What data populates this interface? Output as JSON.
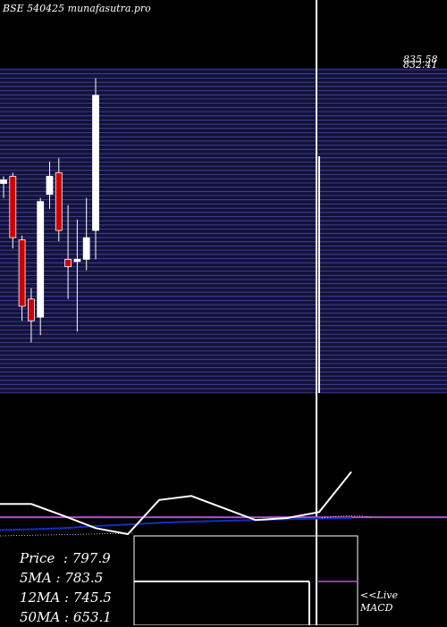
{
  "header": {
    "title": "BSE 540425 munafasutra.pro"
  },
  "stats": {
    "price_label": "Price",
    "price_value": "797.9",
    "ma5_label": "5MA",
    "ma5_value": "783.5",
    "ma12_label": "12MA",
    "ma12_value": "745.5",
    "ma50_label": "50MA",
    "ma50_value": "653.1"
  },
  "links": {
    "live_label": "<<Live",
    "macd_label": "MACD"
  },
  "colors": {
    "background": "#000000",
    "grid_band": "#1a1a4a",
    "grid_line": "#4a4aa0",
    "up_candle": "#ffffff",
    "down_candle": "#cc0000",
    "ma_purple": "#b050d0",
    "ma_blue": "#1030c0",
    "white": "#ffffff"
  },
  "chart_data": {
    "type": "candlestick",
    "price_axis": {
      "top_value": 835.58,
      "top_labels": [
        "835.58",
        "832.41"
      ]
    },
    "candles": [
      {
        "open": 690,
        "high": 700,
        "low": 670,
        "close": 695
      },
      {
        "open": 700,
        "high": 705,
        "low": 600,
        "close": 615
      },
      {
        "open": 612,
        "high": 618,
        "low": 500,
        "close": 520
      },
      {
        "open": 530,
        "high": 545,
        "low": 470,
        "close": 500
      },
      {
        "open": 505,
        "high": 670,
        "low": 480,
        "close": 665
      },
      {
        "open": 675,
        "high": 720,
        "low": 655,
        "close": 700
      },
      {
        "open": 705,
        "high": 725,
        "low": 610,
        "close": 625
      },
      {
        "open": 585,
        "high": 660,
        "low": 530,
        "close": 575
      },
      {
        "open": 582,
        "high": 640,
        "low": 485,
        "close": 585
      },
      {
        "open": 585,
        "high": 670,
        "low": 570,
        "close": 615
      },
      {
        "open": 625,
        "high": 835.58,
        "low": 585,
        "close": 812
      }
    ],
    "indicators": {
      "macd_white": [
        0.75,
        0.75,
        0.45,
        0.15,
        0.0,
        0.85,
        0.95,
        0.65,
        0.35,
        0.4,
        0.55,
        1.55
      ],
      "signal_blue": [
        0.1,
        0.12,
        0.15,
        0.2,
        0.24,
        0.28,
        0.31,
        0.33,
        0.35,
        0.37,
        0.39,
        0.4
      ],
      "purple_level": 0.42
    }
  }
}
